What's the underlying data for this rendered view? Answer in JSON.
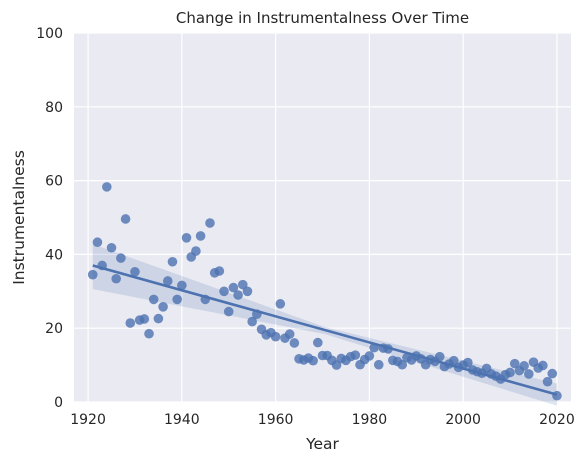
{
  "chart_data": {
    "type": "scatter",
    "title": "Change in Instrumentalness Over Time",
    "xlabel": "Year",
    "ylabel": "Instrumentalness",
    "xlim": [
      1917,
      2023
    ],
    "ylim": [
      0,
      100
    ],
    "xticks": [
      1920,
      1940,
      1960,
      1980,
      2000,
      2020
    ],
    "yticks": [
      0,
      20,
      40,
      60,
      80,
      100
    ],
    "grid": true,
    "background": "#eaeaf2",
    "grid_color": "#ffffff",
    "point_color": "#4c72b0",
    "regression": {
      "start": [
        1921,
        37.0
      ],
      "end": [
        2020,
        2.0
      ],
      "ci_start": [
        30.6,
        42.8
      ],
      "ci_mid": [
        18.4,
        20.3
      ],
      "ci_end": [
        -1.0,
        5.0
      ]
    },
    "points": [
      [
        1921,
        34.5
      ],
      [
        1922,
        43.3
      ],
      [
        1923,
        37.0
      ],
      [
        1924,
        58.3
      ],
      [
        1925,
        41.8
      ],
      [
        1926,
        33.4
      ],
      [
        1927,
        39.0
      ],
      [
        1928,
        49.6
      ],
      [
        1929,
        21.4
      ],
      [
        1930,
        35.3
      ],
      [
        1931,
        22.2
      ],
      [
        1932,
        22.5
      ],
      [
        1933,
        18.5
      ],
      [
        1934,
        27.8
      ],
      [
        1935,
        22.6
      ],
      [
        1936,
        25.8
      ],
      [
        1937,
        32.8
      ],
      [
        1938,
        38.0
      ],
      [
        1939,
        27.8
      ],
      [
        1940,
        31.6
      ],
      [
        1941,
        44.5
      ],
      [
        1942,
        39.3
      ],
      [
        1943,
        40.9
      ],
      [
        1944,
        45.0
      ],
      [
        1945,
        27.8
      ],
      [
        1946,
        48.5
      ],
      [
        1947,
        35.0
      ],
      [
        1948,
        35.5
      ],
      [
        1949,
        30.0
      ],
      [
        1950,
        24.5
      ],
      [
        1951,
        31.0
      ],
      [
        1952,
        29.0
      ],
      [
        1953,
        31.8
      ],
      [
        1954,
        30.0
      ],
      [
        1955,
        21.8
      ],
      [
        1956,
        23.8
      ],
      [
        1957,
        19.7
      ],
      [
        1958,
        18.2
      ],
      [
        1959,
        18.8
      ],
      [
        1960,
        17.7
      ],
      [
        1961,
        26.6
      ],
      [
        1962,
        17.3
      ],
      [
        1963,
        18.4
      ],
      [
        1964,
        16.0
      ],
      [
        1965,
        11.7
      ],
      [
        1966,
        11.4
      ],
      [
        1967,
        11.9
      ],
      [
        1968,
        11.2
      ],
      [
        1969,
        16.1
      ],
      [
        1970,
        12.6
      ],
      [
        1971,
        12.6
      ],
      [
        1972,
        11.3
      ],
      [
        1973,
        10.0
      ],
      [
        1974,
        11.8
      ],
      [
        1975,
        11.3
      ],
      [
        1976,
        12.3
      ],
      [
        1977,
        12.7
      ],
      [
        1978,
        10.1
      ],
      [
        1979,
        11.5
      ],
      [
        1980,
        12.5
      ],
      [
        1981,
        14.7
      ],
      [
        1982,
        10.1
      ],
      [
        1983,
        14.6
      ],
      [
        1984,
        14.4
      ],
      [
        1985,
        11.3
      ],
      [
        1986,
        11.0
      ],
      [
        1987,
        10.1
      ],
      [
        1988,
        12.0
      ],
      [
        1989,
        11.4
      ],
      [
        1990,
        12.5
      ],
      [
        1991,
        11.7
      ],
      [
        1992,
        10.1
      ],
      [
        1993,
        11.5
      ],
      [
        1994,
        11.0
      ],
      [
        1995,
        12.3
      ],
      [
        1996,
        9.6
      ],
      [
        1997,
        10.3
      ],
      [
        1998,
        11.2
      ],
      [
        1999,
        9.4
      ],
      [
        2000,
        10.0
      ],
      [
        2001,
        10.7
      ],
      [
        2002,
        8.7
      ],
      [
        2003,
        8.2
      ],
      [
        2004,
        7.8
      ],
      [
        2005,
        9.1
      ],
      [
        2006,
        7.6
      ],
      [
        2007,
        7.0
      ],
      [
        2008,
        6.2
      ],
      [
        2009,
        7.4
      ],
      [
        2010,
        8.0
      ],
      [
        2011,
        10.4
      ],
      [
        2012,
        8.5
      ],
      [
        2013,
        9.8
      ],
      [
        2014,
        7.6
      ],
      [
        2015,
        10.8
      ],
      [
        2016,
        9.2
      ],
      [
        2017,
        9.9
      ],
      [
        2018,
        5.5
      ],
      [
        2019,
        7.7
      ],
      [
        2020,
        1.7
      ]
    ]
  }
}
